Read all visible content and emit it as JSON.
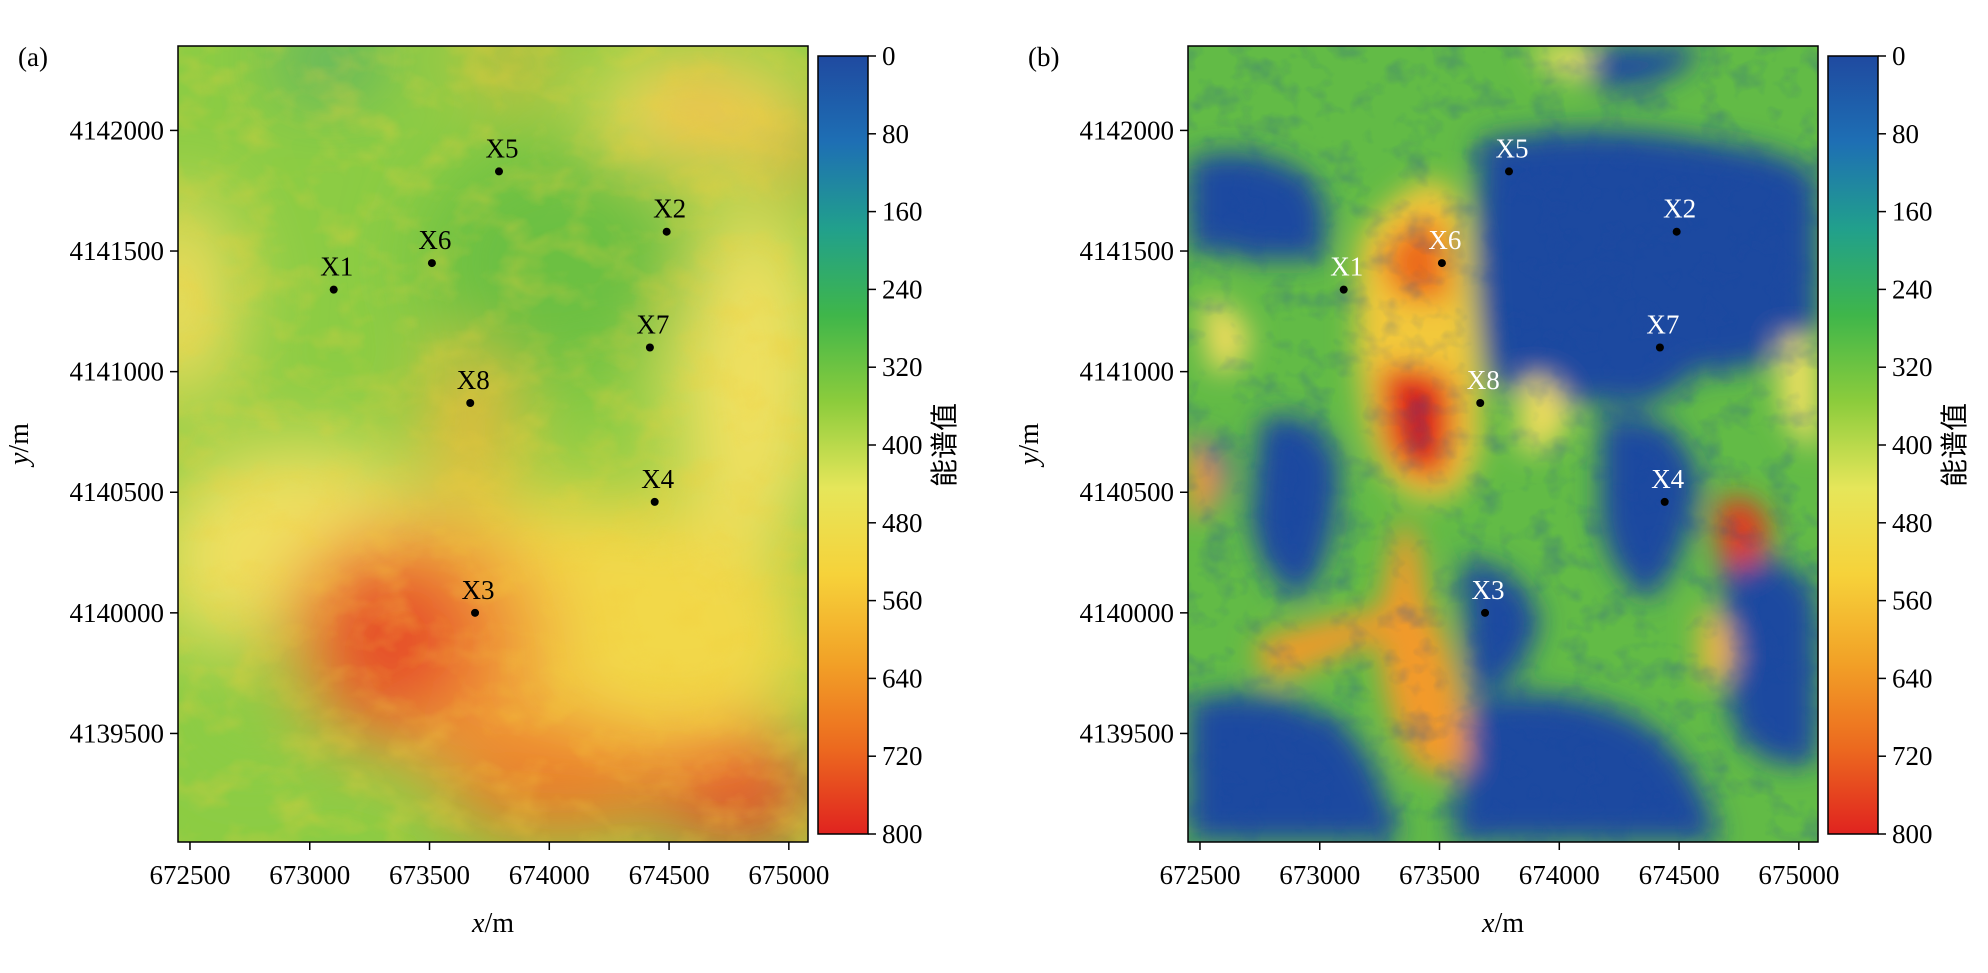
{
  "chart_data": [
    {
      "type": "heatmap",
      "panel_label": "(a)",
      "xlabel_italic": "x",
      "xlabel_unit": "/m",
      "ylabel_italic": "y",
      "ylabel_unit": "/m",
      "x_ticks": [
        "672500",
        "673000",
        "673500",
        "674000",
        "674500",
        "675000"
      ],
      "y_ticks": [
        "4142000",
        "4141500",
        "4141000",
        "4140500",
        "4140000",
        "4139500"
      ],
      "xlim": [
        672450,
        675080
      ],
      "ylim": [
        4139050,
        4142350
      ],
      "colorbar": {
        "title": "能谱值",
        "range": [
          0,
          800
        ],
        "ticks": [
          "0",
          "80",
          "160",
          "240",
          "320",
          "400",
          "480",
          "560",
          "640",
          "720",
          "800"
        ],
        "colors": [
          "#1f4aa0",
          "#1e6fb4",
          "#21a08c",
          "#3fb64a",
          "#8ccc3c",
          "#e6e65a",
          "#f6d23a",
          "#f2a227",
          "#ec6a1f",
          "#e0231f"
        ]
      },
      "label_color": "#000000",
      "wells": [
        {
          "name": "X5",
          "x": 673790,
          "y": 4141830
        },
        {
          "name": "X2",
          "x": 674490,
          "y": 4141580
        },
        {
          "name": "X6",
          "x": 673510,
          "y": 4141450
        },
        {
          "name": "X1",
          "x": 673100,
          "y": 4141340
        },
        {
          "name": "X7",
          "x": 674420,
          "y": 4141100
        },
        {
          "name": "X8",
          "x": 673670,
          "y": 4140870
        },
        {
          "name": "X4",
          "x": 674440,
          "y": 4140460
        },
        {
          "name": "X3",
          "x": 673690,
          "y": 4140000
        }
      ]
    },
    {
      "type": "heatmap",
      "panel_label": "(b)",
      "xlabel_italic": "x",
      "xlabel_unit": "/m",
      "ylabel_italic": "y",
      "ylabel_unit": "/m",
      "x_ticks": [
        "672500",
        "673000",
        "673500",
        "674000",
        "674500",
        "675000"
      ],
      "y_ticks": [
        "4142000",
        "4141500",
        "4141000",
        "4140500",
        "4140000",
        "4139500"
      ],
      "xlim": [
        672450,
        675080
      ],
      "ylim": [
        4139050,
        4142350
      ],
      "colorbar": {
        "title": "能谱值",
        "range": [
          0,
          800
        ],
        "ticks": [
          "0",
          "80",
          "160",
          "240",
          "320",
          "400",
          "480",
          "560",
          "640",
          "720",
          "800"
        ],
        "colors": [
          "#1f4aa0",
          "#1e6fb4",
          "#21a08c",
          "#3fb64a",
          "#8ccc3c",
          "#e6e65a",
          "#f6d23a",
          "#f2a227",
          "#ec6a1f",
          "#e0231f"
        ]
      },
      "label_color": "#ffffff",
      "wells": [
        {
          "name": "X5",
          "x": 673790,
          "y": 4141830
        },
        {
          "name": "X2",
          "x": 674490,
          "y": 4141580
        },
        {
          "name": "X6",
          "x": 673510,
          "y": 4141450
        },
        {
          "name": "X1",
          "x": 673100,
          "y": 4141340
        },
        {
          "name": "X7",
          "x": 674420,
          "y": 4141100
        },
        {
          "name": "X8",
          "x": 673670,
          "y": 4140870
        },
        {
          "name": "X4",
          "x": 674440,
          "y": 4140460
        },
        {
          "name": "X3",
          "x": 673690,
          "y": 4140000
        }
      ]
    }
  ]
}
